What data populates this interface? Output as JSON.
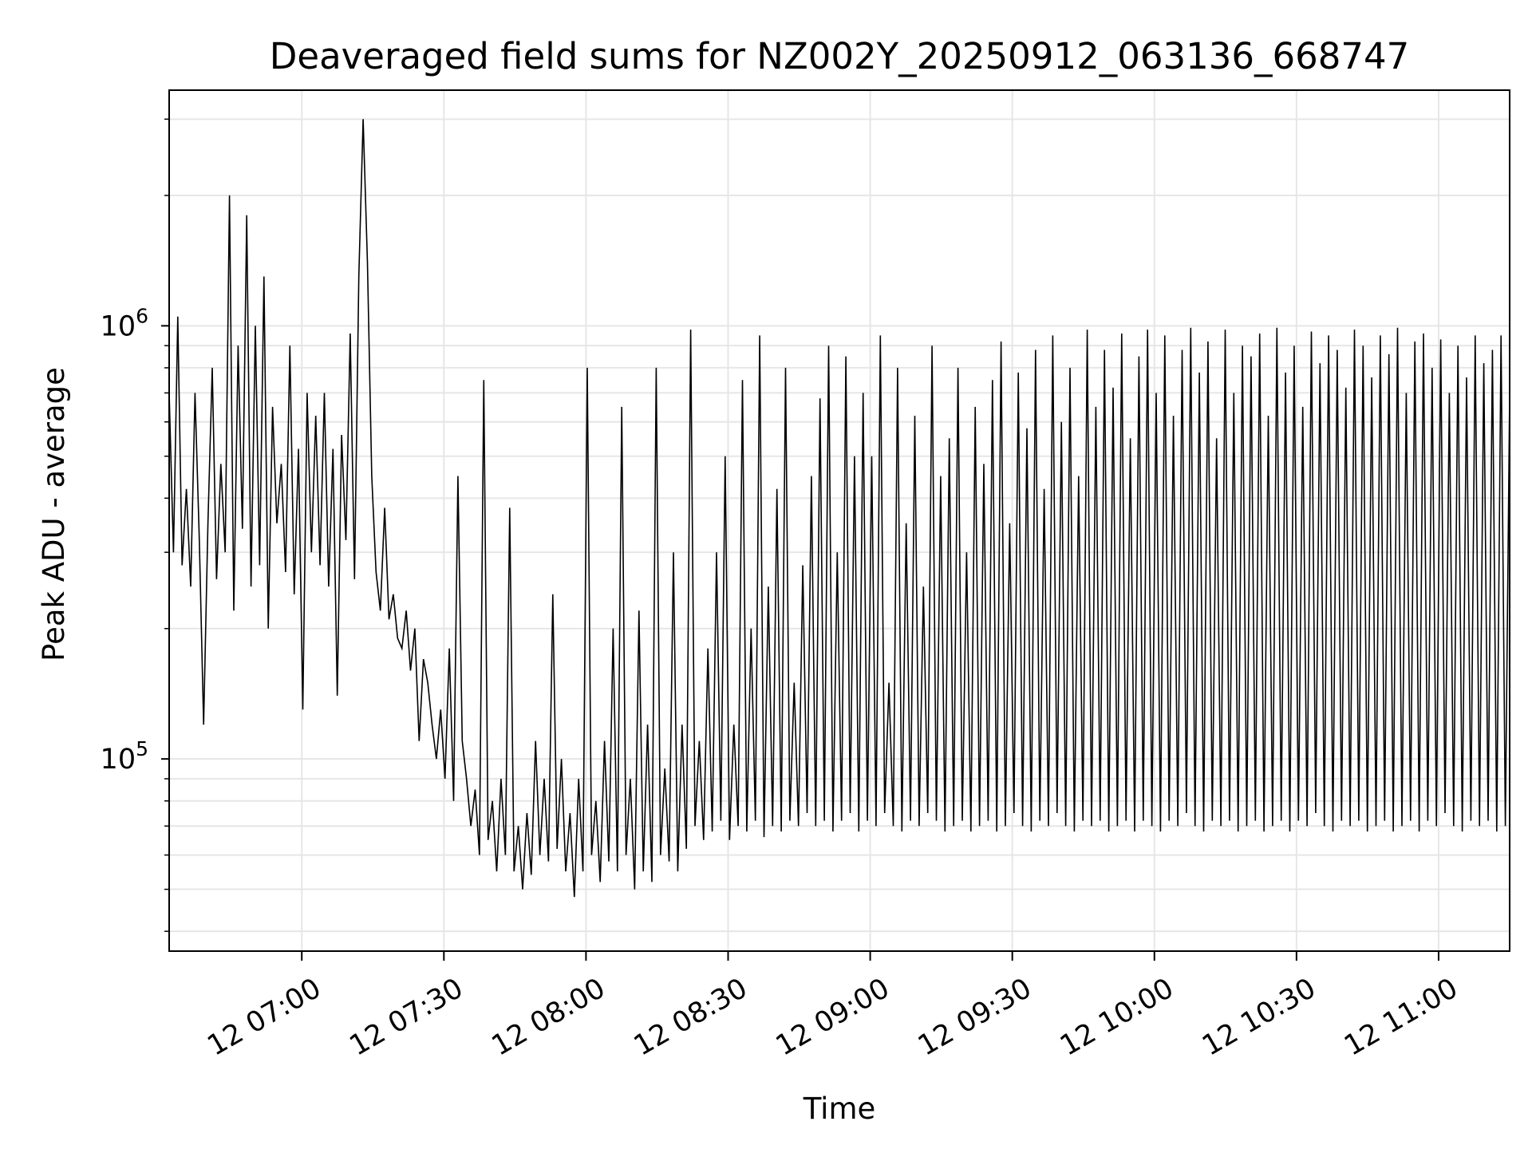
{
  "chart_data": {
    "type": "line",
    "title": "Deaveraged field sums for NZ002Y_20250912_063136_668747",
    "xlabel": "Time",
    "ylabel": "Peak ADU - average",
    "y_scale": "log",
    "grid": true,
    "line_color": "#000000",
    "grid_color": "#e6e6e6",
    "x_start": "12 06:32",
    "x_end": "12 11:15",
    "ylim": [
      36000,
      3500000
    ],
    "x_ticks": [
      "12 07:00",
      "12 07:30",
      "12 08:00",
      "12 08:30",
      "12 09:00",
      "12 09:30",
      "12 10:00",
      "12 10:30",
      "12 11:00"
    ],
    "y_ticks": [
      {
        "base": "10",
        "exp": "5",
        "value": 100000
      },
      {
        "base": "10",
        "exp": "6",
        "value": 1000000
      }
    ],
    "series": [
      {
        "values": [
          700000,
          300000,
          1050000,
          280000,
          420000,
          250000,
          700000,
          320000,
          120000,
          350000,
          800000,
          260000,
          480000,
          300000,
          2000000,
          220000,
          900000,
          340000,
          1800000,
          250000,
          1000000,
          280000,
          1300000,
          200000,
          650000,
          350000,
          480000,
          270000,
          900000,
          240000,
          520000,
          130000,
          700000,
          300000,
          620000,
          280000,
          700000,
          250000,
          520000,
          140000,
          560000,
          320000,
          960000,
          260000,
          1300000,
          3000000,
          1400000,
          450000,
          270000,
          220000,
          380000,
          210000,
          240000,
          190000,
          180000,
          220000,
          160000,
          200000,
          110000,
          170000,
          150000,
          120000,
          100000,
          130000,
          90000,
          180000,
          80000,
          450000,
          110000,
          90000,
          70000,
          85000,
          60000,
          750000,
          65000,
          80000,
          55000,
          90000,
          60000,
          380000,
          55000,
          70000,
          50000,
          75000,
          54000,
          110000,
          60000,
          90000,
          58000,
          240000,
          62000,
          100000,
          55000,
          75000,
          48000,
          90000,
          55000,
          800000,
          60000,
          80000,
          52000,
          110000,
          58000,
          200000,
          55000,
          650000,
          60000,
          90000,
          50000,
          220000,
          55000,
          120000,
          52000,
          800000,
          60000,
          95000,
          58000,
          300000,
          55000,
          120000,
          62000,
          980000,
          70000,
          110000,
          65000,
          180000,
          68000,
          300000,
          72000,
          500000,
          65000,
          120000,
          70000,
          750000,
          68000,
          200000,
          72000,
          950000,
          66000,
          250000,
          70000,
          420000,
          68000,
          800000,
          72000,
          150000,
          70000,
          280000,
          75000,
          450000,
          70000,
          680000,
          72000,
          900000,
          68000,
          300000,
          72000,
          850000,
          75000,
          500000,
          68000,
          700000,
          72000,
          500000,
          70000,
          950000,
          75000,
          150000,
          70000,
          800000,
          68000,
          350000,
          72000,
          620000,
          70000,
          250000,
          75000,
          900000,
          72000,
          450000,
          68000,
          550000,
          70000,
          800000,
          72000,
          300000,
          68000,
          650000,
          70000,
          480000,
          72000,
          750000,
          68000,
          920000,
          70000,
          350000,
          75000,
          780000,
          70000,
          580000,
          68000,
          880000,
          72000,
          420000,
          70000,
          950000,
          75000,
          600000,
          70000,
          800000,
          68000,
          450000,
          72000,
          980000,
          70000,
          650000,
          72000,
          880000,
          68000,
          720000,
          70000,
          960000,
          72000,
          550000,
          68000,
          850000,
          72000,
          980000,
          70000,
          700000,
          68000,
          950000,
          72000,
          620000,
          70000,
          880000,
          75000,
          990000,
          70000,
          780000,
          68000,
          920000,
          72000,
          550000,
          70000,
          980000,
          72000,
          700000,
          68000,
          900000,
          70000,
          850000,
          72000,
          960000,
          68000,
          620000,
          70000,
          990000,
          72000,
          780000,
          68000,
          900000,
          72000,
          650000,
          70000,
          970000,
          75000,
          820000,
          70000,
          950000,
          68000,
          880000,
          72000,
          720000,
          70000,
          980000,
          72000,
          900000,
          68000,
          760000,
          70000,
          950000,
          72000,
          860000,
          68000,
          990000,
          70000,
          700000,
          72000,
          920000,
          68000,
          960000,
          72000,
          800000,
          70000,
          930000,
          75000,
          700000,
          70000,
          900000,
          68000,
          760000,
          72000,
          950000,
          70000,
          820000,
          72000,
          880000,
          68000,
          950000,
          70000,
          700000
        ]
      }
    ]
  }
}
